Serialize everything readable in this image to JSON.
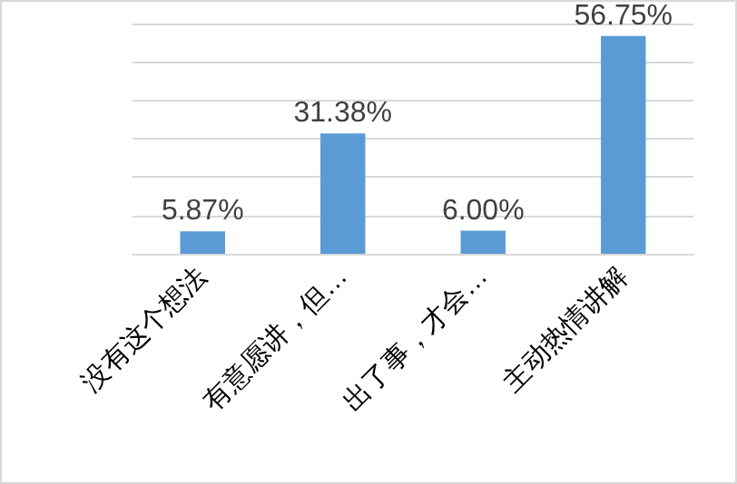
{
  "chart_data": {
    "type": "bar",
    "categories": [
      "没有这个想法",
      "有意愿讲，但…",
      "出了事，才会…",
      "主动热情讲解"
    ],
    "values": [
      5.87,
      31.38,
      6.0,
      56.75
    ],
    "value_labels": [
      "5.87%",
      "31.38%",
      "6.00%",
      "56.75%"
    ],
    "color": "#5b9bd5",
    "ylim": [
      0,
      60
    ],
    "yticks": [
      0,
      10,
      20,
      30,
      40,
      50,
      60
    ],
    "grid": "y",
    "tick_labels": "x"
  }
}
